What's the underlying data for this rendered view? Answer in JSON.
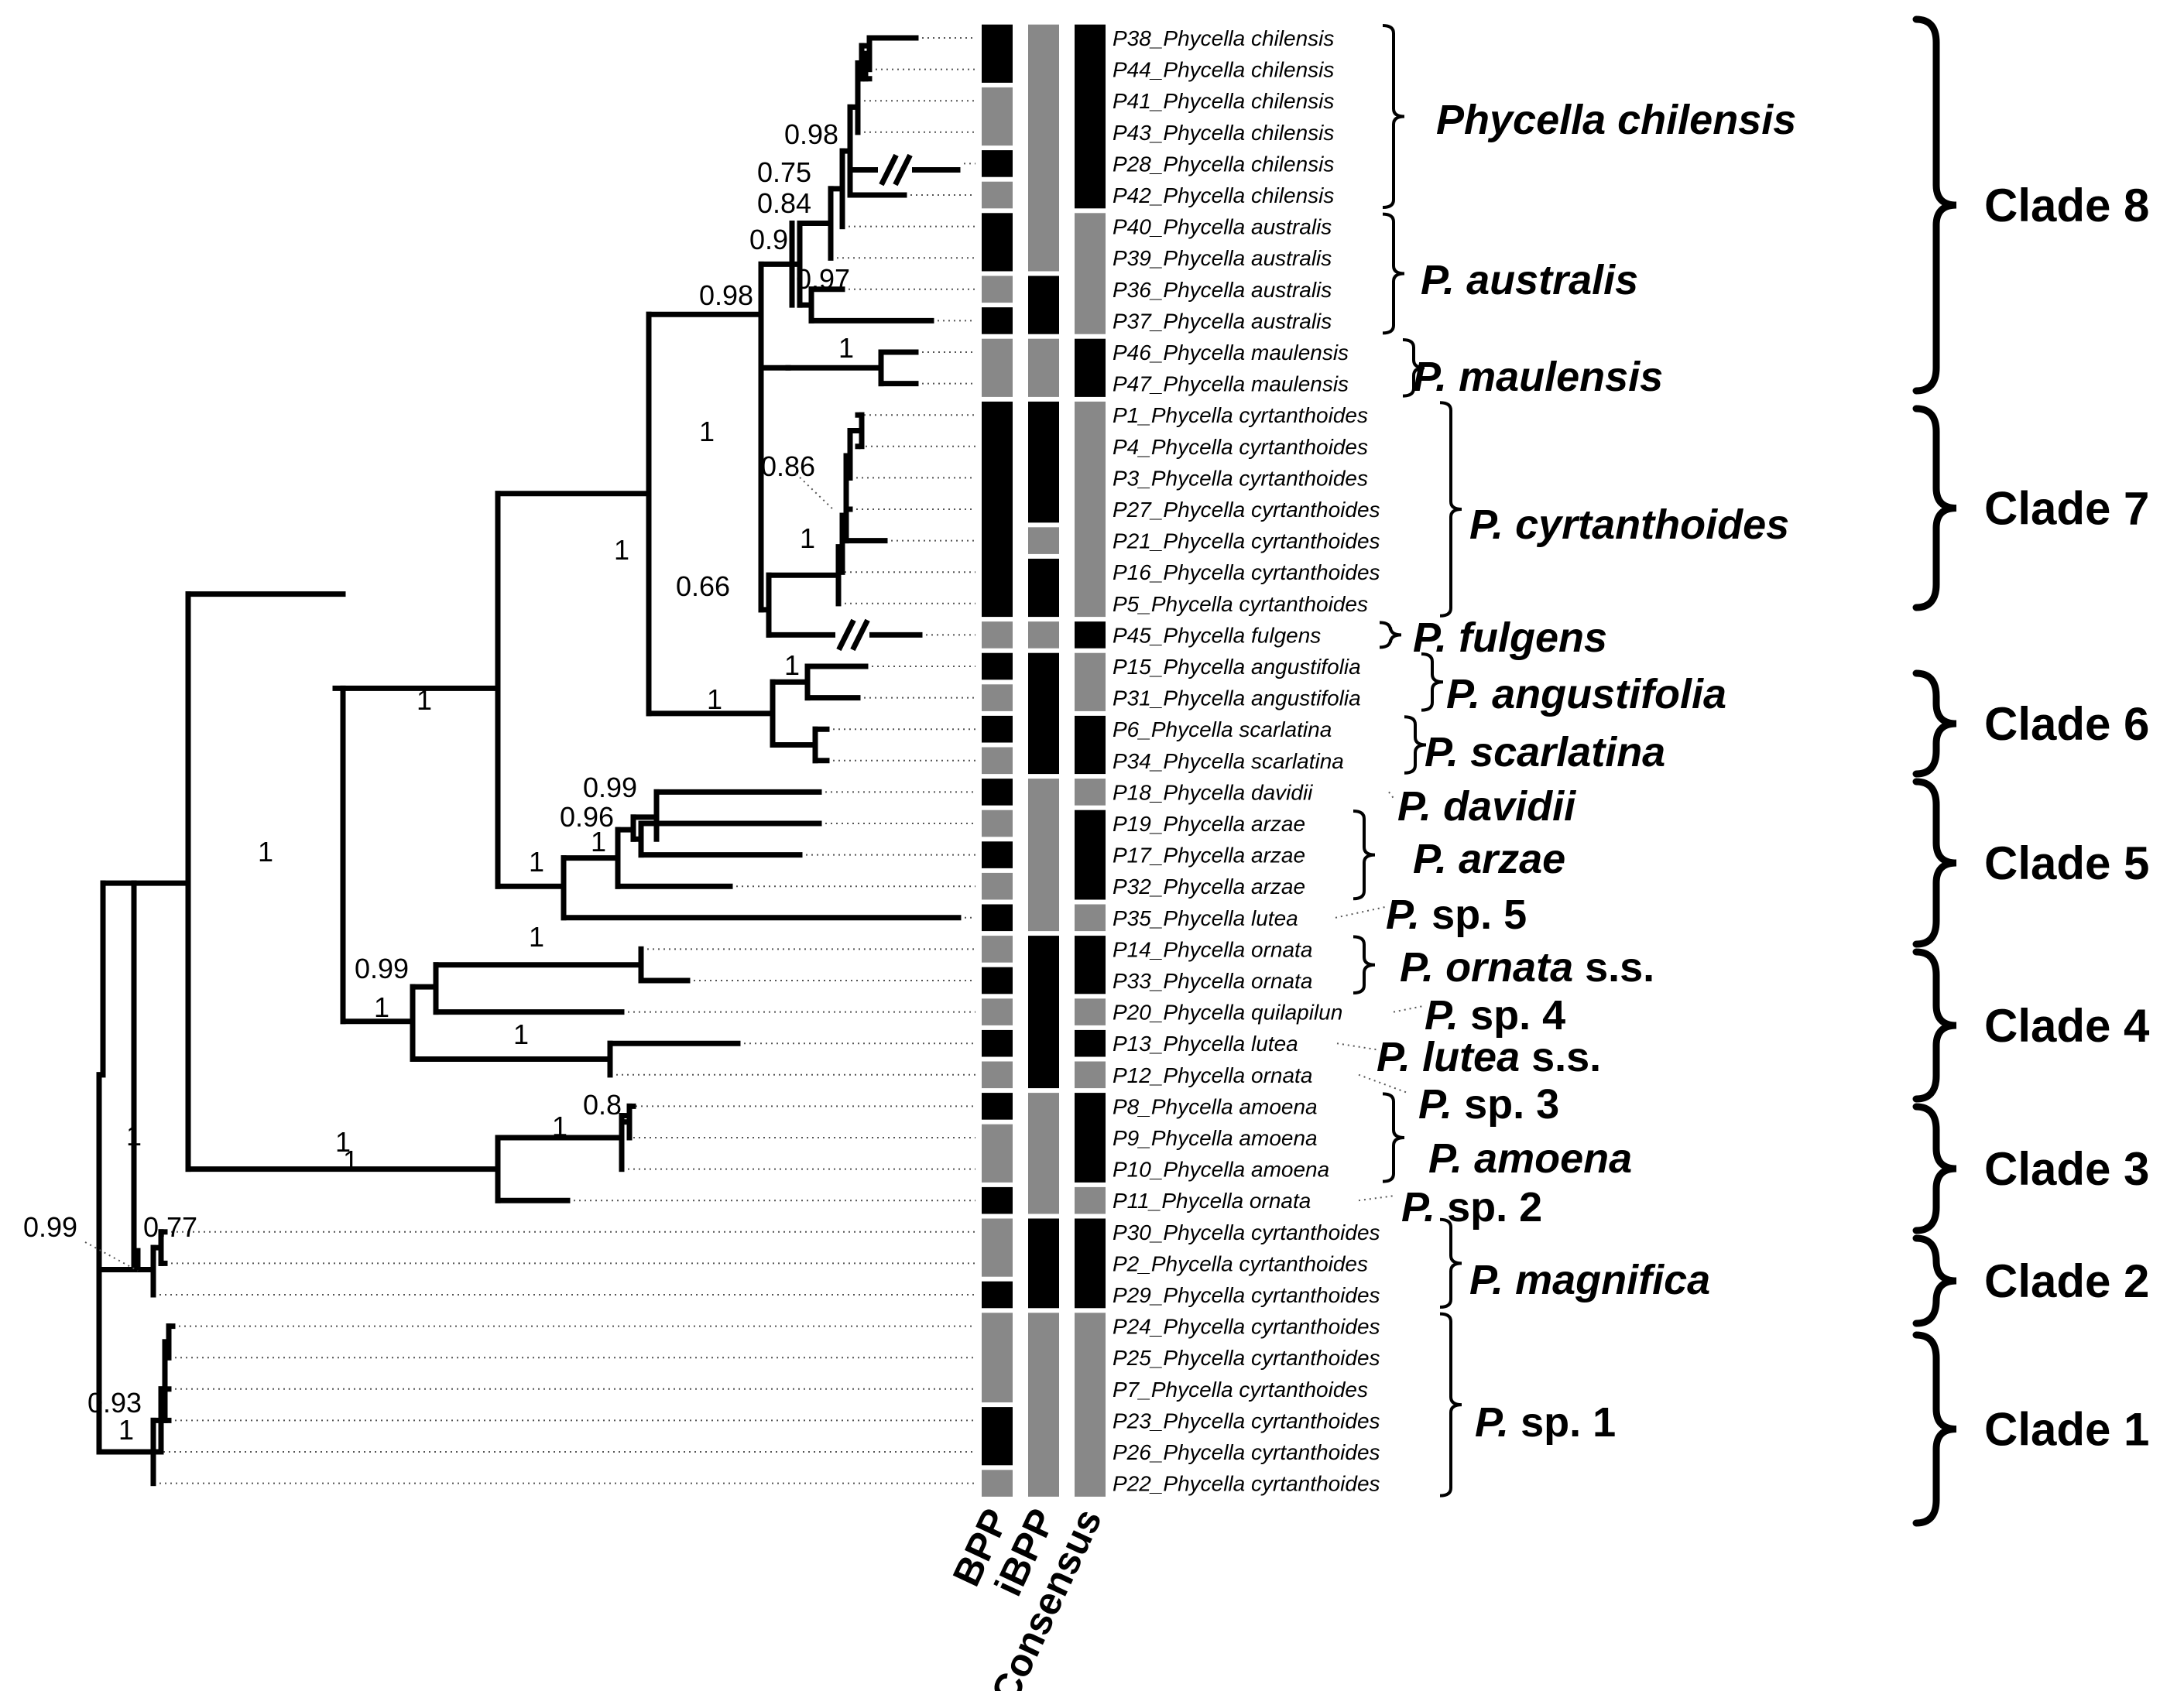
{
  "colors": {
    "black": "#000000",
    "gray": "#888888"
  },
  "columns": [
    "BPP",
    "iBPP",
    "Consensus"
  ],
  "tips": [
    {
      "label": "P38_Phycella chilensis"
    },
    {
      "label": "P44_Phycella chilensis"
    },
    {
      "label": "P41_Phycella chilensis"
    },
    {
      "label": "P43_Phycella chilensis"
    },
    {
      "label": "P28_Phycella chilensis"
    },
    {
      "label": "P42_Phycella chilensis"
    },
    {
      "label": "P40_Phycella australis"
    },
    {
      "label": "P39_Phycella australis"
    },
    {
      "label": "P36_Phycella australis"
    },
    {
      "label": "P37_Phycella australis"
    },
    {
      "label": "P46_Phycella maulensis"
    },
    {
      "label": "P47_Phycella maulensis"
    },
    {
      "label": "P1_Phycella cyrtanthoides"
    },
    {
      "label": "P4_Phycella cyrtanthoides"
    },
    {
      "label": "P3_Phycella cyrtanthoides"
    },
    {
      "label": "P27_Phycella cyrtanthoides"
    },
    {
      "label": "P21_Phycella cyrtanthoides"
    },
    {
      "label": "P16_Phycella cyrtanthoides"
    },
    {
      "label": "P5_Phycella cyrtanthoides"
    },
    {
      "label": "P45_Phycella fulgens"
    },
    {
      "label": "P15_Phycella angustifolia"
    },
    {
      "label": "P31_Phycella angustifolia"
    },
    {
      "label": "P6_Phycella scarlatina"
    },
    {
      "label": "P34_Phycella scarlatina"
    },
    {
      "label": "P18_Phycella davidii"
    },
    {
      "label": "P19_Phycella arzae"
    },
    {
      "label": "P17_Phycella arzae"
    },
    {
      "label": "P32_Phycella arzae"
    },
    {
      "label": "P35_Phycella lutea"
    },
    {
      "label": "P14_Phycella ornata"
    },
    {
      "label": "P33_Phycella ornata"
    },
    {
      "label": "P20_Phycella quilapilun"
    },
    {
      "label": "P13_Phycella lutea"
    },
    {
      "label": "P12_Phycella ornata"
    },
    {
      "label": "P8_Phycella amoena"
    },
    {
      "label": "P9_Phycella amoena"
    },
    {
      "label": "P10_Phycella amoena"
    },
    {
      "label": "P11_Phycella ornata"
    },
    {
      "label": "P30_Phycella cyrtanthoides"
    },
    {
      "label": "P2_Phycella cyrtanthoides"
    },
    {
      "label": "P29_Phycella cyrtanthoides"
    },
    {
      "label": "P24_Phycella cyrtanthoides"
    },
    {
      "label": "P25_Phycella cyrtanthoides"
    },
    {
      "label": "P7_Phycella cyrtanthoides"
    },
    {
      "label": "P23_Phycella cyrtanthoides"
    },
    {
      "label": "P26_Phycella cyrtanthoides"
    },
    {
      "label": "P22_Phycella cyrtanthoides"
    }
  ],
  "bars": {
    "bpp": [
      [
        0,
        1,
        "black"
      ],
      [
        2,
        3,
        "gray"
      ],
      [
        4,
        4,
        "black"
      ],
      [
        5,
        5,
        "gray"
      ],
      [
        6,
        7,
        "black"
      ],
      [
        8,
        8,
        "gray"
      ],
      [
        9,
        9,
        "black"
      ],
      [
        10,
        11,
        "gray"
      ],
      [
        12,
        18,
        "black"
      ],
      [
        19,
        19,
        "gray"
      ],
      [
        20,
        20,
        "black"
      ],
      [
        21,
        21,
        "gray"
      ],
      [
        22,
        22,
        "black"
      ],
      [
        23,
        23,
        "gray"
      ],
      [
        24,
        24,
        "black"
      ],
      [
        25,
        25,
        "gray"
      ],
      [
        26,
        26,
        "black"
      ],
      [
        27,
        27,
        "gray"
      ],
      [
        28,
        28,
        "black"
      ],
      [
        29,
        29,
        "gray"
      ],
      [
        30,
        30,
        "black"
      ],
      [
        31,
        31,
        "gray"
      ],
      [
        32,
        32,
        "black"
      ],
      [
        33,
        33,
        "gray"
      ],
      [
        34,
        34,
        "black"
      ],
      [
        35,
        36,
        "gray"
      ],
      [
        37,
        37,
        "black"
      ],
      [
        38,
        39,
        "gray"
      ],
      [
        40,
        40,
        "black"
      ],
      [
        41,
        43,
        "gray"
      ],
      [
        44,
        45,
        "black"
      ],
      [
        46,
        46,
        "gray"
      ]
    ],
    "ibpp": [
      [
        0,
        7,
        "gray"
      ],
      [
        8,
        9,
        "black"
      ],
      [
        10,
        11,
        "gray"
      ],
      [
        12,
        15,
        "black"
      ],
      [
        16,
        16,
        "gray"
      ],
      [
        17,
        18,
        "black"
      ],
      [
        19,
        19,
        "gray"
      ],
      [
        20,
        23,
        "black"
      ],
      [
        24,
        28,
        "gray"
      ],
      [
        29,
        33,
        "black"
      ],
      [
        34,
        37,
        "gray"
      ],
      [
        38,
        40,
        "black"
      ],
      [
        41,
        46,
        "gray"
      ]
    ],
    "consensus": [
      [
        0,
        5,
        "black"
      ],
      [
        6,
        9,
        "gray"
      ],
      [
        10,
        11,
        "black"
      ],
      [
        12,
        18,
        "gray"
      ],
      [
        19,
        19,
        "black"
      ],
      [
        20,
        21,
        "gray"
      ],
      [
        22,
        23,
        "black"
      ],
      [
        24,
        24,
        "gray"
      ],
      [
        25,
        27,
        "black"
      ],
      [
        28,
        28,
        "gray"
      ],
      [
        29,
        30,
        "black"
      ],
      [
        31,
        31,
        "gray"
      ],
      [
        32,
        32,
        "black"
      ],
      [
        33,
        33,
        "gray"
      ],
      [
        34,
        36,
        "black"
      ],
      [
        37,
        37,
        "gray"
      ],
      [
        38,
        40,
        "black"
      ],
      [
        41,
        46,
        "gray"
      ]
    ]
  },
  "support": [
    {
      "value": "0.98"
    },
    {
      "value": "0.75"
    },
    {
      "value": "0.84"
    },
    {
      "value": "0.9"
    },
    {
      "value": "0.97"
    },
    {
      "value": "0.98"
    },
    {
      "value": "1"
    },
    {
      "value": "1"
    },
    {
      "value": "0.86"
    },
    {
      "value": "1"
    },
    {
      "value": "0.66"
    },
    {
      "value": "1"
    },
    {
      "value": "1"
    },
    {
      "value": "1"
    },
    {
      "value": "1"
    },
    {
      "value": "1"
    },
    {
      "value": "0.99"
    },
    {
      "value": "0.96"
    },
    {
      "value": "1"
    },
    {
      "value": "1"
    },
    {
      "value": "1"
    },
    {
      "value": "0.99"
    },
    {
      "value": "1"
    },
    {
      "value": "1"
    },
    {
      "value": "1"
    },
    {
      "value": "1"
    },
    {
      "value": "0.8"
    },
    {
      "value": "1"
    },
    {
      "value": "1"
    },
    {
      "value": "0.77"
    },
    {
      "value": "0.99"
    },
    {
      "value": "0.93"
    },
    {
      "value": "1"
    }
  ],
  "species": [
    {
      "italic": "Phycella chilensis",
      "plain": ""
    },
    {
      "italic": "P. australis",
      "plain": ""
    },
    {
      "italic": "P. maulensis",
      "plain": ""
    },
    {
      "italic": "P. cyrtanthoides",
      "plain": ""
    },
    {
      "italic": "P. fulgens",
      "plain": ""
    },
    {
      "italic": "P. angustifolia",
      "plain": ""
    },
    {
      "italic": "P. scarlatina",
      "plain": ""
    },
    {
      "italic": "P. davidii",
      "plain": ""
    },
    {
      "italic": "P. arzae",
      "plain": ""
    },
    {
      "italic": "P.",
      "plain": " sp. 5"
    },
    {
      "italic": "P. ornata",
      "plain": " s.s."
    },
    {
      "italic": "P.",
      "plain": " sp. 4"
    },
    {
      "italic": "P. lutea",
      "plain": " s.s."
    },
    {
      "italic": "P.",
      "plain": " sp. 3"
    },
    {
      "italic": "P. amoena",
      "plain": ""
    },
    {
      "italic": "P.",
      "plain": " sp. 2"
    },
    {
      "italic": "P. magnifica",
      "plain": ""
    },
    {
      "italic": "P.",
      "plain": " sp. 1"
    }
  ],
  "clades": [
    "Clade 8",
    "Clade 7",
    "Clade 6",
    "Clade 5",
    "Clade 4",
    "Clade 3",
    "Clade 2",
    "Clade 1"
  ]
}
